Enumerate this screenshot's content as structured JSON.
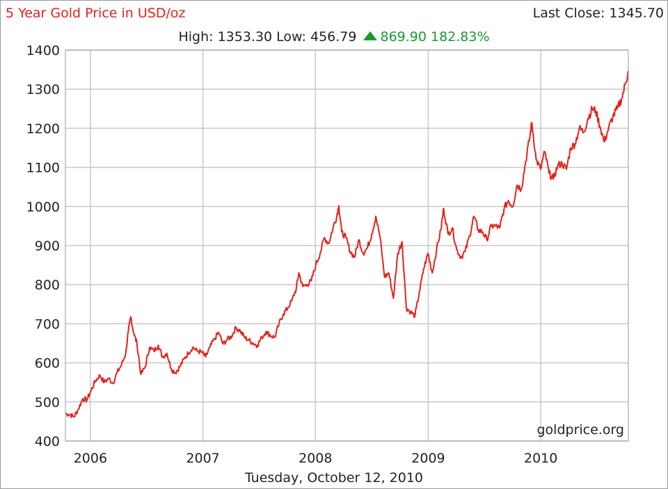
{
  "header": {
    "title": "5 Year Gold Price in USD/oz",
    "last_close": "Last Close: 1345.70",
    "high_low": "High: 1353.30 Low: 456.79",
    "change": "869.90 182.83%"
  },
  "footer": {
    "date": "Tuesday, October 12, 2010"
  },
  "watermark": "goldprice.org",
  "colors": {
    "line": "#e8201a",
    "title": "#e8201a",
    "change": "#159b2e",
    "grid": "#c8c8c8"
  },
  "chart_data": {
    "type": "line",
    "title": "5 Year Gold Price in USD/oz",
    "xlabel": "",
    "ylabel": "",
    "ylim": [
      400,
      1400
    ],
    "xlim": [
      "2005-10-12",
      "2010-10-12"
    ],
    "yticks": [
      400,
      500,
      600,
      700,
      800,
      900,
      1000,
      1100,
      1200,
      1300,
      1400
    ],
    "xticks": [
      {
        "label": "2006",
        "date": "2006-01-01"
      },
      {
        "label": "2007",
        "date": "2007-01-01"
      },
      {
        "label": "2008",
        "date": "2008-01-01"
      },
      {
        "label": "2009",
        "date": "2009-01-01"
      },
      {
        "label": "2010",
        "date": "2010-01-01"
      }
    ],
    "grid": true,
    "series": [
      {
        "points": [
          [
            "2005-10-12",
            470
          ],
          [
            "2005-10-26",
            468
          ],
          [
            "2005-11-09",
            462
          ],
          [
            "2005-11-23",
            482
          ],
          [
            "2005-12-07",
            508
          ],
          [
            "2005-12-21",
            505
          ],
          [
            "2006-01-04",
            530
          ],
          [
            "2006-01-18",
            555
          ],
          [
            "2006-02-01",
            568
          ],
          [
            "2006-02-15",
            550
          ],
          [
            "2006-03-01",
            560
          ],
          [
            "2006-03-15",
            548
          ],
          [
            "2006-03-29",
            575
          ],
          [
            "2006-04-12",
            595
          ],
          [
            "2006-04-26",
            625
          ],
          [
            "2006-05-04",
            680
          ],
          [
            "2006-05-12",
            718
          ],
          [
            "2006-05-22",
            675
          ],
          [
            "2006-06-01",
            650
          ],
          [
            "2006-06-14",
            570
          ],
          [
            "2006-06-28",
            590
          ],
          [
            "2006-07-12",
            640
          ],
          [
            "2006-07-26",
            630
          ],
          [
            "2006-08-09",
            645
          ],
          [
            "2006-08-23",
            615
          ],
          [
            "2006-09-06",
            625
          ],
          [
            "2006-09-20",
            585
          ],
          [
            "2006-10-04",
            575
          ],
          [
            "2006-10-18",
            590
          ],
          [
            "2006-11-01",
            610
          ],
          [
            "2006-11-15",
            625
          ],
          [
            "2006-11-29",
            640
          ],
          [
            "2006-12-13",
            630
          ],
          [
            "2006-12-27",
            628
          ],
          [
            "2007-01-10",
            615
          ],
          [
            "2007-01-24",
            640
          ],
          [
            "2007-02-07",
            660
          ],
          [
            "2007-02-21",
            678
          ],
          [
            "2007-03-07",
            648
          ],
          [
            "2007-03-21",
            660
          ],
          [
            "2007-04-04",
            668
          ],
          [
            "2007-04-18",
            690
          ],
          [
            "2007-05-02",
            682
          ],
          [
            "2007-05-16",
            665
          ],
          [
            "2007-05-30",
            658
          ],
          [
            "2007-06-13",
            650
          ],
          [
            "2007-06-27",
            645
          ],
          [
            "2007-07-11",
            665
          ],
          [
            "2007-07-25",
            680
          ],
          [
            "2007-08-08",
            670
          ],
          [
            "2007-08-22",
            665
          ],
          [
            "2007-09-05",
            700
          ],
          [
            "2007-09-19",
            725
          ],
          [
            "2007-10-03",
            740
          ],
          [
            "2007-10-17",
            760
          ],
          [
            "2007-10-31",
            790
          ],
          [
            "2007-11-08",
            830
          ],
          [
            "2007-11-21",
            795
          ],
          [
            "2007-12-05",
            800
          ],
          [
            "2007-12-19",
            810
          ],
          [
            "2008-01-02",
            850
          ],
          [
            "2008-01-16",
            880
          ],
          [
            "2008-01-30",
            920
          ],
          [
            "2008-02-13",
            905
          ],
          [
            "2008-02-27",
            945
          ],
          [
            "2008-03-10",
            975
          ],
          [
            "2008-03-17",
            1002
          ],
          [
            "2008-03-26",
            935
          ],
          [
            "2008-04-09",
            920
          ],
          [
            "2008-04-23",
            885
          ],
          [
            "2008-05-07",
            870
          ],
          [
            "2008-05-21",
            915
          ],
          [
            "2008-06-04",
            880
          ],
          [
            "2008-06-18",
            895
          ],
          [
            "2008-07-02",
            930
          ],
          [
            "2008-07-15",
            975
          ],
          [
            "2008-07-29",
            920
          ],
          [
            "2008-08-12",
            820
          ],
          [
            "2008-08-26",
            830
          ],
          [
            "2008-09-10",
            765
          ],
          [
            "2008-09-24",
            880
          ],
          [
            "2008-10-08",
            910
          ],
          [
            "2008-10-22",
            740
          ],
          [
            "2008-11-05",
            730
          ],
          [
            "2008-11-19",
            720
          ],
          [
            "2008-12-03",
            780
          ],
          [
            "2008-12-17",
            840
          ],
          [
            "2008-12-31",
            880
          ],
          [
            "2009-01-14",
            830
          ],
          [
            "2009-01-28",
            890
          ],
          [
            "2009-02-11",
            940
          ],
          [
            "2009-02-20",
            995
          ],
          [
            "2009-03-06",
            930
          ],
          [
            "2009-03-20",
            945
          ],
          [
            "2009-04-03",
            890
          ],
          [
            "2009-04-17",
            870
          ],
          [
            "2009-05-01",
            885
          ],
          [
            "2009-05-15",
            925
          ],
          [
            "2009-05-29",
            975
          ],
          [
            "2009-06-12",
            940
          ],
          [
            "2009-06-26",
            935
          ],
          [
            "2009-07-10",
            915
          ],
          [
            "2009-07-24",
            950
          ],
          [
            "2009-08-07",
            950
          ],
          [
            "2009-08-21",
            945
          ],
          [
            "2009-09-04",
            995
          ],
          [
            "2009-09-18",
            1015
          ],
          [
            "2009-10-02",
            1000
          ],
          [
            "2009-10-16",
            1055
          ],
          [
            "2009-10-30",
            1045
          ],
          [
            "2009-11-13",
            1115
          ],
          [
            "2009-11-27",
            1180
          ],
          [
            "2009-12-03",
            1215
          ],
          [
            "2009-12-17",
            1120
          ],
          [
            "2009-12-31",
            1095
          ],
          [
            "2010-01-14",
            1140
          ],
          [
            "2010-01-28",
            1085
          ],
          [
            "2010-02-11",
            1070
          ],
          [
            "2010-02-25",
            1105
          ],
          [
            "2010-03-11",
            1110
          ],
          [
            "2010-03-25",
            1095
          ],
          [
            "2010-04-08",
            1150
          ],
          [
            "2010-04-22",
            1160
          ],
          [
            "2010-05-06",
            1200
          ],
          [
            "2010-05-20",
            1190
          ],
          [
            "2010-06-03",
            1225
          ],
          [
            "2010-06-17",
            1250
          ],
          [
            "2010-06-28",
            1245
          ],
          [
            "2010-07-12",
            1205
          ],
          [
            "2010-07-26",
            1165
          ],
          [
            "2010-08-09",
            1200
          ],
          [
            "2010-08-23",
            1230
          ],
          [
            "2010-09-06",
            1250
          ],
          [
            "2010-09-20",
            1275
          ],
          [
            "2010-10-04",
            1318
          ],
          [
            "2010-10-12",
            1346
          ]
        ]
      }
    ]
  }
}
